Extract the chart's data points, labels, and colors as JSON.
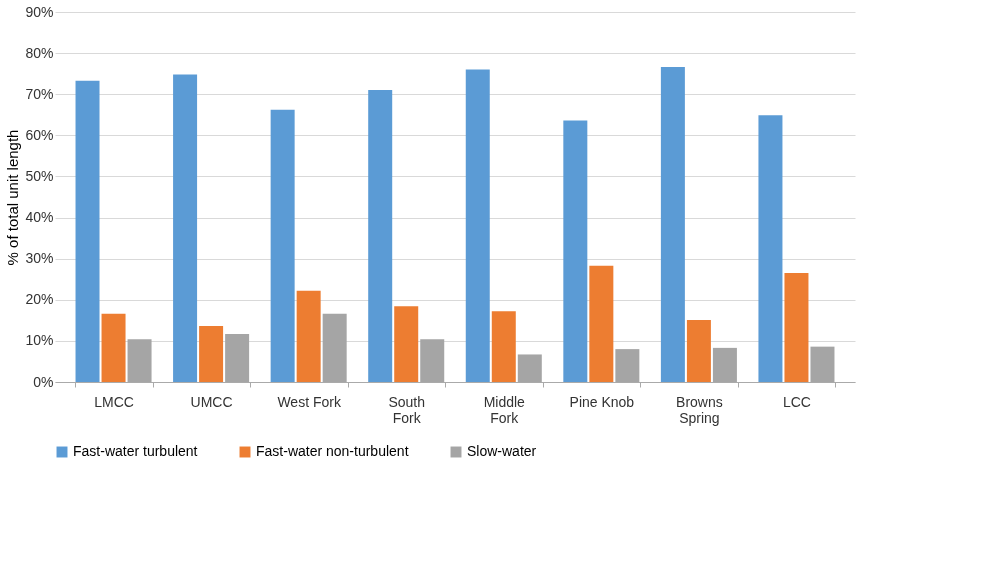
{
  "chart_data": {
    "type": "bar",
    "ylabel": "% of total unit length",
    "categories": [
      "LMCC",
      "UMCC",
      "West Fork",
      "South Fork",
      "Middle Fork",
      "Pine Knob",
      "Browns Spring",
      "LCC"
    ],
    "series": [
      {
        "name": "Fast-water turbulent",
        "color": "#5b9bd5",
        "values": [
          73.3,
          74.8,
          66.2,
          71.0,
          76.0,
          63.6,
          76.6,
          64.9
        ]
      },
      {
        "name": "Fast-water non-turbulent",
        "color": "#ed7d31",
        "values": [
          16.6,
          13.6,
          22.2,
          18.4,
          17.2,
          28.3,
          15.1,
          26.5
        ]
      },
      {
        "name": "Slow-water",
        "color": "#a5a5a5",
        "values": [
          10.4,
          11.7,
          16.6,
          10.4,
          6.7,
          8.0,
          8.3,
          8.6
        ]
      }
    ],
    "ylim": [
      0,
      90
    ],
    "yticks": [
      {
        "value": 0,
        "label": "0%"
      },
      {
        "value": 10,
        "label": "10%"
      },
      {
        "value": 20,
        "label": "20%"
      },
      {
        "value": 30,
        "label": "30%"
      },
      {
        "value": 40,
        "label": "40%"
      },
      {
        "value": 50,
        "label": "50%"
      },
      {
        "value": 60,
        "label": "60%"
      },
      {
        "value": 70,
        "label": "70%"
      },
      {
        "value": 80,
        "label": "80%"
      },
      {
        "value": 90,
        "label": "90%"
      }
    ],
    "grid": "y",
    "legend": "bottom"
  }
}
